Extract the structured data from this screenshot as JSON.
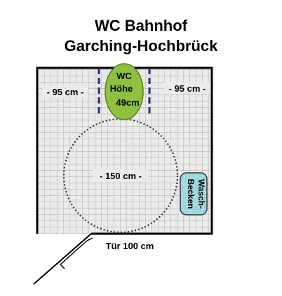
{
  "title": {
    "line1": "WC Bahnhof",
    "line2": "Garching-Hochbrück"
  },
  "labels": {
    "left_distance": "- 95 cm -",
    "right_distance": "- 95 cm -",
    "turning_circle": "- 150 cm -",
    "door": "Tür 100 cm"
  },
  "toilet": {
    "lines": [
      "WC",
      "Höhe",
      "49cm"
    ]
  },
  "sink": {
    "lines": [
      "Wasch-",
      "Becken"
    ]
  },
  "colors": {
    "grid": "#bdbdbd",
    "floor": "#ebebeb",
    "wall": "#000000",
    "toilet": "#8dc13f",
    "sink": "#9fd8de",
    "dashed_lines": "#1f2f7a"
  }
}
